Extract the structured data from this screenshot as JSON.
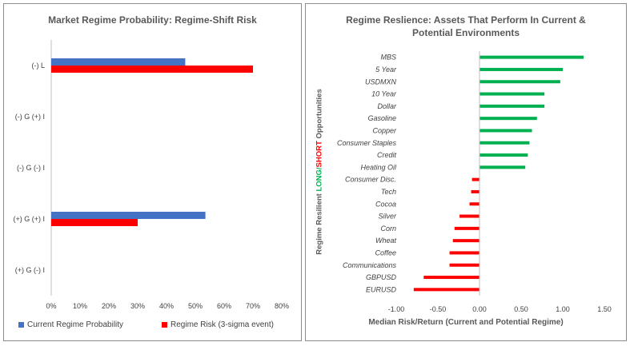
{
  "colors": {
    "blue": "#4472c4",
    "red": "#ff0000",
    "green": "#00b050",
    "axis": "#bfbfbf",
    "text": "#404040"
  },
  "chart_data": [
    {
      "type": "bar",
      "orientation": "horizontal",
      "title": "Market Regime Probability: Regime-Shift Risk",
      "categories": [
        "(-) L",
        "(-) G (+) I",
        "(-) G (-) I",
        "(+) G (+) I",
        "(+) G (-) I"
      ],
      "series": [
        {
          "name": "Current Regime Probability",
          "color": "#4472c4",
          "values": [
            0.465,
            0,
            0,
            0.535,
            0
          ]
        },
        {
          "name": "Regime Risk (3-sigma event)",
          "color": "#ff0000",
          "values": [
            0.7,
            0,
            0,
            0.3,
            0
          ]
        }
      ],
      "xlim": [
        0,
        0.8
      ],
      "xticks": [
        "0%",
        "10%",
        "20%",
        "30%",
        "40%",
        "50%",
        "60%",
        "70%",
        "80%"
      ],
      "legend": "bottom"
    },
    {
      "type": "bar",
      "orientation": "horizontal",
      "title": "Regime Reslience: Assets That Perform In Current & Potential Environments",
      "categories": [
        "MBS",
        "5 Year",
        "USDMXN",
        "10 Year",
        "Dollar",
        "Gasoline",
        "Copper",
        "Consumer Staples",
        "Credit",
        "Heating Oil",
        "Consumer Disc.",
        "Tech",
        "Cocoa",
        "Silver",
        "Corn",
        "Wheat",
        "Coffee",
        "Communications",
        "GBPUSD",
        "EURUSD"
      ],
      "values": [
        1.25,
        1.0,
        0.97,
        0.78,
        0.78,
        0.69,
        0.63,
        0.6,
        0.58,
        0.55,
        -0.09,
        -0.1,
        -0.12,
        -0.24,
        -0.3,
        -0.32,
        -0.36,
        -0.36,
        -0.67,
        -0.79
      ],
      "xlim": [
        -1.0,
        1.5
      ],
      "xticks": [
        "-1.00",
        "-0.50",
        "0.00",
        "0.50",
        "1.00",
        "1.50"
      ],
      "xlabel": "Median Risk/Return (Current and Potential Regime)",
      "ylabel_parts": [
        "Regime Resilient ",
        "LONG",
        "/",
        "SHORT",
        " Opportunities"
      ],
      "positive_color": "#00b050",
      "negative_color": "#ff0000"
    }
  ]
}
